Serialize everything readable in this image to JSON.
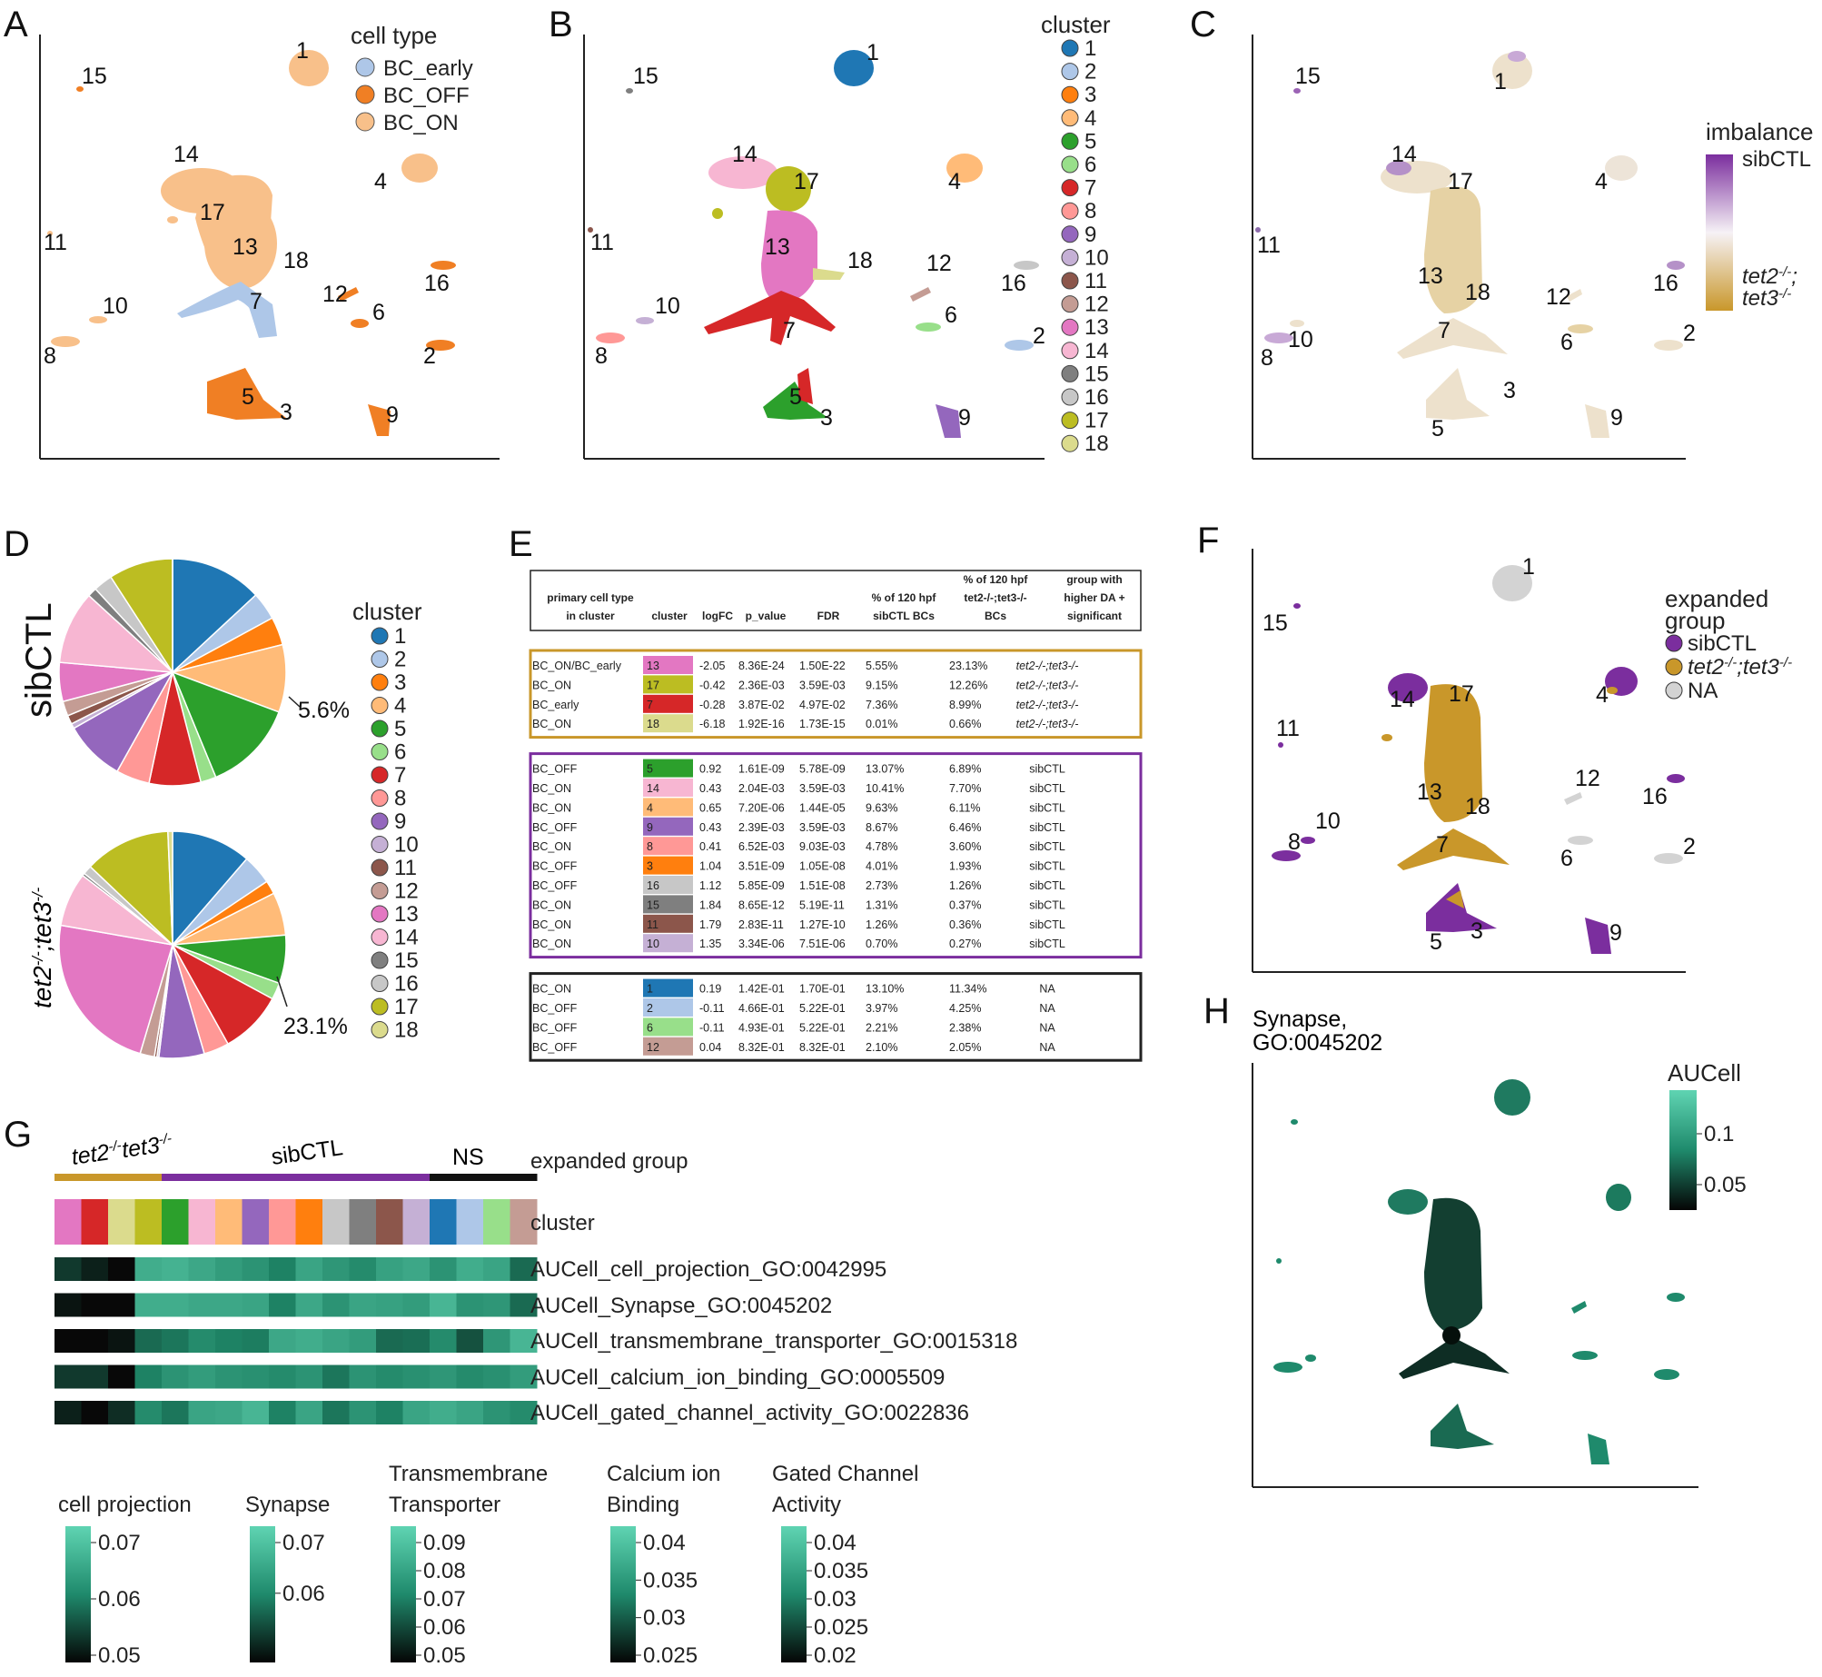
{
  "panels": {
    "A": {
      "letter": "A",
      "legend_title": "cell type",
      "legend": [
        {
          "label": "BC_early",
          "color": "#aec7e8"
        },
        {
          "label": "BC_OFF",
          "color": "#f07f24"
        },
        {
          "label": "BC_ON",
          "color": "#f8c08a"
        }
      ],
      "cluster_labels": [
        "1",
        "2",
        "3",
        "4",
        "5",
        "6",
        "7",
        "8",
        "9",
        "10",
        "11",
        "12",
        "13",
        "14",
        "15",
        "16",
        "17",
        "18"
      ]
    },
    "B": {
      "letter": "B",
      "legend_title": "cluster",
      "cluster_labels": [
        "1",
        "2",
        "3",
        "4",
        "5",
        "6",
        "7",
        "8",
        "9",
        "10",
        "11",
        "12",
        "13",
        "14",
        "15",
        "16",
        "17",
        "18"
      ]
    },
    "C": {
      "letter": "C",
      "legend_title": "imbalance",
      "legend_top": "sibCTL",
      "legend_bottom_1": "tet2",
      "legend_bottom_1_sup": "-/-",
      "legend_bottom_1_sep": ";",
      "legend_bottom_2": "tet3",
      "legend_bottom_2_sup": "-/-",
      "cluster_labels": [
        "1",
        "2",
        "3",
        "4",
        "5",
        "6",
        "7",
        "8",
        "9",
        "10",
        "11",
        "12",
        "13",
        "14",
        "15",
        "16",
        "17",
        "18"
      ]
    },
    "D": {
      "letter": "D",
      "pie1_label": "sibCTL",
      "pie2_label_a": "tet2",
      "pie2_label_sup": "-/-",
      "pie2_label_sep": ";",
      "pie2_label_b": "tet3",
      "pie2_label_sup2": "-/-",
      "pie1_callout": "5.6%",
      "pie2_callout": "23.1%",
      "legend_title": "cluster"
    },
    "E": {
      "letter": "E"
    },
    "F": {
      "letter": "F",
      "legend_title_1": "expanded",
      "legend_title_2": "group",
      "legend": [
        {
          "label": "sibCTL",
          "color": "#7b2e9e"
        },
        {
          "label": "tet2-/-;tet3-/-",
          "label_a": "tet2",
          "sup": "-/-",
          "sep": ";",
          "label_b": "tet3",
          "color": "#c9972a"
        },
        {
          "label": "NA",
          "color": "#d3d3d3"
        }
      ],
      "cluster_labels": [
        "1",
        "2",
        "3",
        "4",
        "5",
        "6",
        "7",
        "8",
        "9",
        "10",
        "11",
        "12",
        "13",
        "14",
        "15",
        "16",
        "17",
        "18"
      ]
    },
    "G": {
      "letter": "G",
      "group_labels": {
        "tet": "tet2",
        "tet_sup": "-/-",
        "tet_b": "tet3",
        "tet_sup2": "-/-",
        "sib": "sibCTL",
        "ns": "NS"
      },
      "row_labels": [
        "expanded group",
        "cluster",
        "AUCell_cell_projection_GO:0042995",
        "AUCell_Synapse_GO:0045202",
        "AUCell_transmembrane_transporter_GO:0015318",
        "AUCell_calcium_ion_binding_GO:0005509",
        "AUCell_gated_channel_activity_GO:0022836"
      ],
      "cluster_order": [
        13,
        7,
        18,
        17,
        5,
        14,
        4,
        9,
        8,
        3,
        16,
        15,
        11,
        10,
        1,
        2,
        6,
        12
      ],
      "heat_values": [
        [
          0.2,
          0.1,
          0.0,
          0.75,
          0.78,
          0.72,
          0.65,
          0.6,
          0.5,
          0.7,
          0.62,
          0.55,
          0.68,
          0.72,
          0.6,
          0.75,
          0.7,
          0.4
        ],
        [
          0.05,
          0.0,
          0.0,
          0.75,
          0.75,
          0.72,
          0.72,
          0.7,
          0.5,
          0.72,
          0.6,
          0.7,
          0.68,
          0.65,
          0.8,
          0.6,
          0.62,
          0.4
        ],
        [
          0.0,
          0.0,
          0.05,
          0.4,
          0.45,
          0.55,
          0.5,
          0.48,
          0.72,
          0.75,
          0.7,
          0.65,
          0.4,
          0.42,
          0.55,
          0.3,
          0.62,
          0.8
        ],
        [
          0.2,
          0.2,
          0.0,
          0.5,
          0.6,
          0.65,
          0.6,
          0.58,
          0.55,
          0.6,
          0.45,
          0.6,
          0.55,
          0.58,
          0.62,
          0.55,
          0.58,
          0.65
        ],
        [
          0.1,
          0.0,
          0.15,
          0.55,
          0.45,
          0.7,
          0.72,
          0.8,
          0.5,
          0.7,
          0.45,
          0.6,
          0.5,
          0.7,
          0.75,
          0.7,
          0.6,
          0.55
        ]
      ],
      "colorbars": [
        {
          "title_1": "",
          "title_2": "cell projection",
          "ticks": [
            "0.07",
            "0.06",
            "0.05"
          ]
        },
        {
          "title_1": "",
          "title_2": "Synapse",
          "ticks": [
            "0.07",
            "0.06"
          ]
        },
        {
          "title_1": "Transmembrane",
          "title_2": "Transporter",
          "ticks": [
            "0.09",
            "0.08",
            "0.07",
            "0.06",
            "0.05"
          ]
        },
        {
          "title_1": "Calcium ion",
          "title_2": "Binding",
          "ticks": [
            "0.04",
            "0.035",
            "0.03",
            "0.025"
          ]
        },
        {
          "title_1": "Gated Channel",
          "title_2": "Activity",
          "ticks": [
            "0.04",
            "0.035",
            "0.03",
            "0.025",
            "0.02"
          ]
        }
      ]
    },
    "H": {
      "letter": "H",
      "title_1": "Synapse,",
      "title_2": "GO:0045202",
      "legend_title": "AUCell",
      "ticks": [
        "0.1",
        "0.05"
      ]
    }
  },
  "cluster_colors": {
    "1": "#1f77b4",
    "2": "#aec7e8",
    "3": "#ff7f0e",
    "4": "#ffbb78",
    "5": "#2ca02c",
    "6": "#98df8a",
    "7": "#d62728",
    "8": "#ff9896",
    "9": "#9467bd",
    "10": "#c5b0d5",
    "11": "#8c564b",
    "12": "#c49c94",
    "13": "#e377c2",
    "14": "#f7b6d2",
    "15": "#7f7f7f",
    "16": "#c7c7c7",
    "17": "#bcbd22",
    "18": "#dbdb8d"
  },
  "chart_data": [
    {
      "type": "pie",
      "title": "sibCTL",
      "categories": [
        "1",
        "2",
        "3",
        "4",
        "5",
        "6",
        "7",
        "8",
        "9",
        "10",
        "11",
        "12",
        "13",
        "14",
        "15",
        "16",
        "17",
        "18"
      ],
      "values": [
        13.1,
        3.97,
        4.01,
        9.63,
        13.07,
        2.21,
        7.36,
        4.78,
        8.67,
        0.7,
        1.26,
        2.1,
        5.55,
        10.41,
        1.31,
        2.73,
        9.15,
        0.01
      ],
      "annotation": "5.6%"
    },
    {
      "type": "pie",
      "title": "tet2-/-;tet3-/-",
      "categories": [
        "1",
        "2",
        "3",
        "4",
        "5",
        "6",
        "7",
        "8",
        "9",
        "10",
        "11",
        "12",
        "13",
        "14",
        "15",
        "16",
        "17",
        "18"
      ],
      "values": [
        11.34,
        4.25,
        1.93,
        6.11,
        6.89,
        2.38,
        8.99,
        3.6,
        6.46,
        0.27,
        0.36,
        2.05,
        23.13,
        7.7,
        0.37,
        1.26,
        12.26,
        0.66
      ],
      "annotation": "23.1%"
    },
    {
      "type": "table",
      "title": "E",
      "columns": [
        "primary cell type in cluster",
        "cluster",
        "logFC",
        "p_value",
        "FDR",
        "% of 120 hpf sibCTL BCs",
        "% of 120 hpf tet2-/-;tet3-/- BCs",
        "group with higher DA + significant"
      ],
      "header_lines": {
        "c0": [
          "primary cell type",
          "in cluster"
        ],
        "c1": [
          "cluster"
        ],
        "c2": [
          "logFC"
        ],
        "c3": [
          "p_value"
        ],
        "c4": [
          "FDR"
        ],
        "c5": [
          "% of 120 hpf",
          "sibCTL BCs"
        ],
        "c6": [
          "% of 120 hpf",
          "tet2-/-;tet3-/-",
          "BCs"
        ],
        "c7": [
          "group with",
          "higher DA +",
          "significant"
        ]
      },
      "groups": [
        {
          "border": "#c9972a",
          "rows": [
            [
              "BC_ON/BC_early",
              "13",
              "-2.05",
              "8.36E-24",
              "1.50E-22",
              "5.55%",
              "23.13%",
              "tet2-/-;tet3-/-"
            ],
            [
              "BC_ON",
              "17",
              "-0.42",
              "2.36E-03",
              "3.59E-03",
              "9.15%",
              "12.26%",
              "tet2-/-;tet3-/-"
            ],
            [
              "BC_early",
              "7",
              "-0.28",
              "3.87E-02",
              "4.97E-02",
              "7.36%",
              "8.99%",
              "tet2-/-;tet3-/-"
            ],
            [
              "BC_ON",
              "18",
              "-6.18",
              "1.92E-16",
              "1.73E-15",
              "0.01%",
              "0.66%",
              "tet2-/-;tet3-/-"
            ]
          ]
        },
        {
          "border": "#7b2e9e",
          "rows": [
            [
              "BC_OFF",
              "5",
              "0.92",
              "1.61E-09",
              "5.78E-09",
              "13.07%",
              "6.89%",
              "sibCTL"
            ],
            [
              "BC_ON",
              "14",
              "0.43",
              "2.04E-03",
              "3.59E-03",
              "10.41%",
              "7.70%",
              "sibCTL"
            ],
            [
              "BC_ON",
              "4",
              "0.65",
              "7.20E-06",
              "1.44E-05",
              "9.63%",
              "6.11%",
              "sibCTL"
            ],
            [
              "BC_OFF",
              "9",
              "0.43",
              "2.39E-03",
              "3.59E-03",
              "8.67%",
              "6.46%",
              "sibCTL"
            ],
            [
              "BC_ON",
              "8",
              "0.41",
              "6.52E-03",
              "9.03E-03",
              "4.78%",
              "3.60%",
              "sibCTL"
            ],
            [
              "BC_OFF",
              "3",
              "1.04",
              "3.51E-09",
              "1.05E-08",
              "4.01%",
              "1.93%",
              "sibCTL"
            ],
            [
              "BC_OFF",
              "16",
              "1.12",
              "5.85E-09",
              "1.51E-08",
              "2.73%",
              "1.26%",
              "sibCTL"
            ],
            [
              "BC_ON",
              "15",
              "1.84",
              "8.65E-12",
              "5.19E-11",
              "1.31%",
              "0.37%",
              "sibCTL"
            ],
            [
              "BC_ON",
              "11",
              "1.79",
              "2.83E-11",
              "1.27E-10",
              "1.26%",
              "0.36%",
              "sibCTL"
            ],
            [
              "BC_ON",
              "10",
              "1.35",
              "3.34E-06",
              "7.51E-06",
              "0.70%",
              "0.27%",
              "sibCTL"
            ]
          ]
        },
        {
          "border": "#222222",
          "rows": [
            [
              "BC_ON",
              "1",
              "0.19",
              "1.42E-01",
              "1.70E-01",
              "13.10%",
              "11.34%",
              "NA"
            ],
            [
              "BC_OFF",
              "2",
              "-0.11",
              "4.66E-01",
              "5.22E-01",
              "3.97%",
              "4.25%",
              "NA"
            ],
            [
              "BC_OFF",
              "6",
              "-0.11",
              "4.93E-01",
              "5.22E-01",
              "2.21%",
              "2.38%",
              "NA"
            ],
            [
              "BC_OFF",
              "12",
              "0.04",
              "8.32E-01",
              "8.32E-01",
              "2.10%",
              "2.05%",
              "NA"
            ]
          ]
        }
      ]
    }
  ]
}
